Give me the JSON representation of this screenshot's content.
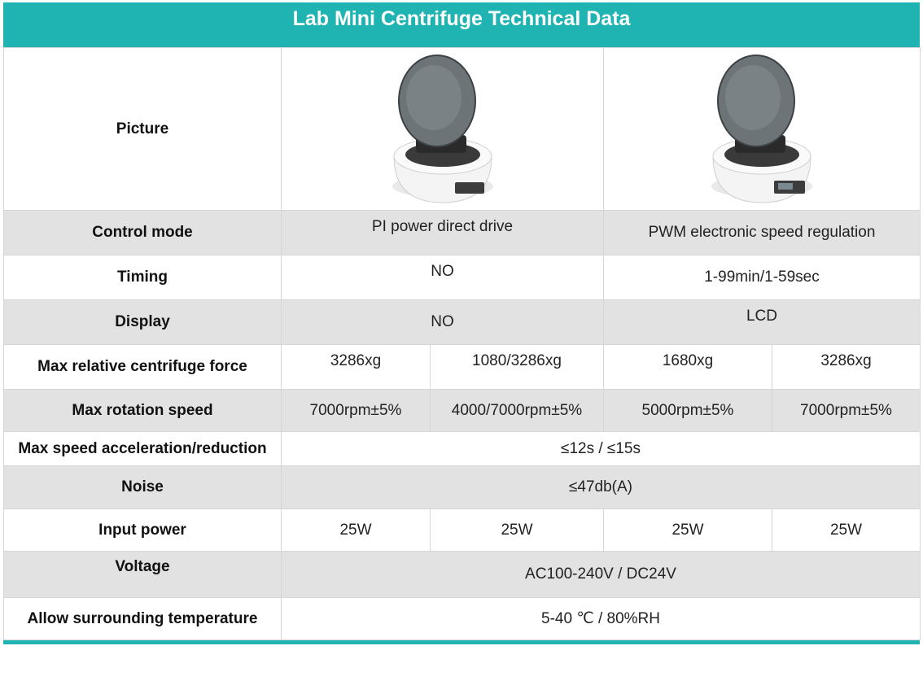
{
  "title": "Lab Mini Centrifuge Technical Data",
  "rows": {
    "picture": {
      "label": "Picture"
    },
    "control_mode": {
      "label": "Control mode",
      "a": "PI power direct drive",
      "b": "PWM electronic speed regulation"
    },
    "timing": {
      "label": "Timing",
      "a": "NO",
      "b": "1-99min/1-59sec"
    },
    "display": {
      "label": "Display",
      "a": "NO",
      "b": "LCD"
    },
    "max_rcf": {
      "label": "Max relative centrifuge force",
      "values": [
        "3286xg",
        "1080/3286xg",
        "1680xg",
        "3286xg"
      ]
    },
    "max_speed": {
      "label": "Max rotation speed",
      "values": [
        "7000rpm±5%",
        "4000/7000rpm±5%",
        "5000rpm±5%",
        "7000rpm±5%"
      ]
    },
    "accel": {
      "label": "Max speed acceleration/reduction",
      "value": "≤12s / ≤15s"
    },
    "noise": {
      "label": "Noise",
      "value": "≤47db(A)"
    },
    "input_power": {
      "label": "Input power",
      "values": [
        "25W",
        "25W",
        "25W",
        "25W"
      ]
    },
    "voltage": {
      "label": "Voltage",
      "value": "AC100-240V / DC24V"
    },
    "temperature": {
      "label": "Allow surrounding temperature",
      "value": "5-40 ℃ / 80%RH"
    }
  },
  "colors": {
    "accent": "#1fb3b2",
    "row_gray": "#e2e2e2"
  }
}
